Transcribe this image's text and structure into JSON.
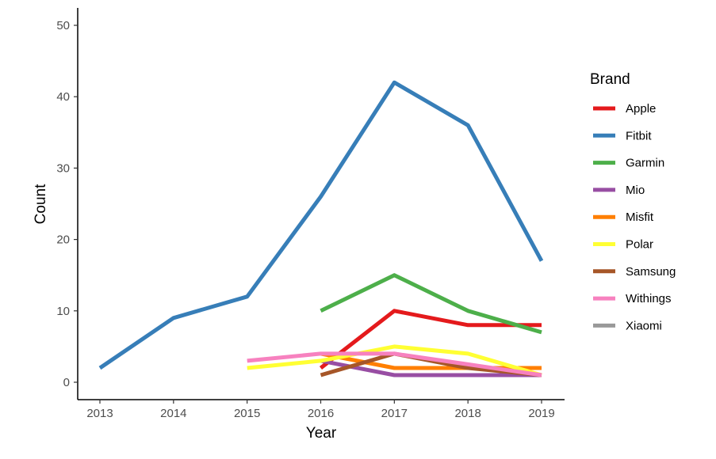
{
  "chart_data": {
    "type": "line",
    "title": "",
    "xlabel": "Year",
    "ylabel": "Count",
    "x": [
      2013,
      2014,
      2015,
      2016,
      2017,
      2018,
      2019
    ],
    "xlim": [
      2013,
      2019
    ],
    "ylim": [
      0,
      50
    ],
    "yticks": [
      0,
      10,
      20,
      30,
      40,
      50
    ],
    "grid": false,
    "legend": {
      "title": "Brand",
      "placement": "right"
    },
    "series": [
      {
        "name": "Apple",
        "color": "#e41a1c",
        "values": [
          null,
          null,
          null,
          2,
          10,
          8,
          8
        ]
      },
      {
        "name": "Fitbit",
        "color": "#377eb8",
        "values": [
          2,
          9,
          12,
          26,
          42,
          36,
          17
        ]
      },
      {
        "name": "Garmin",
        "color": "#4daf4a",
        "values": [
          null,
          null,
          null,
          10,
          15,
          10,
          7
        ]
      },
      {
        "name": "Mio",
        "color": "#984ea3",
        "values": [
          null,
          null,
          null,
          3,
          1,
          1,
          1
        ]
      },
      {
        "name": "Misfit",
        "color": "#ff7f00",
        "values": [
          null,
          null,
          null,
          4,
          2,
          2,
          2
        ]
      },
      {
        "name": "Polar",
        "color": "#ffff33",
        "values": [
          null,
          null,
          2,
          3,
          5,
          4,
          1
        ]
      },
      {
        "name": "Samsung",
        "color": "#a65628",
        "values": [
          null,
          null,
          null,
          1,
          4,
          2,
          1
        ]
      },
      {
        "name": "Withings",
        "color": "#f781bf",
        "values": [
          null,
          null,
          3,
          4,
          4,
          2.5,
          1
        ]
      },
      {
        "name": "Xiaomi",
        "color": "#999999",
        "values": [
          null,
          null,
          null,
          null,
          null,
          null,
          null
        ]
      }
    ]
  }
}
